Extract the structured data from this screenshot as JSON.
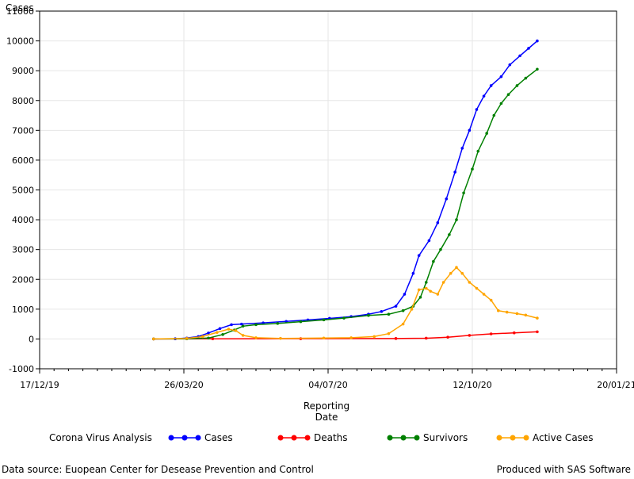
{
  "chart_data": {
    "type": "line",
    "xlabel": "Reporting Date",
    "ylabel": "Cases",
    "xlim": [
      "2019-12-17",
      "2021-01-20"
    ],
    "ylim": [
      -1000,
      11000
    ],
    "x_ticks": [
      "17/12/19",
      "26/03/20",
      "04/07/20",
      "12/10/20",
      "20/01/21"
    ],
    "y_ticks": [
      -1000,
      0,
      1000,
      2000,
      3000,
      4000,
      5000,
      6000,
      7000,
      8000,
      9000,
      10000,
      11000
    ],
    "grid": true,
    "legend_title": "Corona Virus Analysis",
    "legend_position": "bottom",
    "series": [
      {
        "name": "Cases",
        "color": "#0000ff",
        "points": [
          [
            "2020-03-05",
            0
          ],
          [
            "2020-03-20",
            5
          ],
          [
            "2020-03-28",
            30
          ],
          [
            "2020-04-05",
            80
          ],
          [
            "2020-04-12",
            200
          ],
          [
            "2020-04-20",
            350
          ],
          [
            "2020-04-28",
            480
          ],
          [
            "2020-05-05",
            500
          ],
          [
            "2020-05-20",
            540
          ],
          [
            "2020-06-05",
            590
          ],
          [
            "2020-06-20",
            640
          ],
          [
            "2020-07-05",
            690
          ],
          [
            "2020-07-20",
            750
          ],
          [
            "2020-08-01",
            830
          ],
          [
            "2020-08-10",
            920
          ],
          [
            "2020-08-20",
            1100
          ],
          [
            "2020-08-26",
            1500
          ],
          [
            "2020-09-01",
            2200
          ],
          [
            "2020-09-05",
            2800
          ],
          [
            "2020-09-12",
            3300
          ],
          [
            "2020-09-18",
            3900
          ],
          [
            "2020-09-24",
            4700
          ],
          [
            "2020-09-30",
            5600
          ],
          [
            "2020-10-05",
            6400
          ],
          [
            "2020-10-10",
            7000
          ],
          [
            "2020-10-15",
            7700
          ],
          [
            "2020-10-20",
            8150
          ],
          [
            "2020-10-25",
            8500
          ],
          [
            "2020-11-01",
            8800
          ],
          [
            "2020-11-07",
            9200
          ],
          [
            "2020-11-14",
            9500
          ],
          [
            "2020-11-20",
            9750
          ],
          [
            "2020-11-26",
            10000
          ]
        ]
      },
      {
        "name": "Deaths",
        "color": "#ff0000",
        "points": [
          [
            "2020-03-05",
            0
          ],
          [
            "2020-04-15",
            5
          ],
          [
            "2020-06-15",
            10
          ],
          [
            "2020-08-20",
            15
          ],
          [
            "2020-09-10",
            25
          ],
          [
            "2020-09-25",
            60
          ],
          [
            "2020-10-10",
            120
          ],
          [
            "2020-10-25",
            170
          ],
          [
            "2020-11-10",
            205
          ],
          [
            "2020-11-26",
            240
          ]
        ]
      },
      {
        "name": "Survivors",
        "color": "#008000",
        "points": [
          [
            "2020-03-05",
            0
          ],
          [
            "2020-03-28",
            5
          ],
          [
            "2020-04-12",
            30
          ],
          [
            "2020-04-22",
            150
          ],
          [
            "2020-04-30",
            300
          ],
          [
            "2020-05-06",
            430
          ],
          [
            "2020-05-15",
            480
          ],
          [
            "2020-05-30",
            520
          ],
          [
            "2020-06-15",
            580
          ],
          [
            "2020-07-01",
            640
          ],
          [
            "2020-07-15",
            700
          ],
          [
            "2020-08-01",
            790
          ],
          [
            "2020-08-15",
            830
          ],
          [
            "2020-08-25",
            950
          ],
          [
            "2020-09-01",
            1100
          ],
          [
            "2020-09-06",
            1400
          ],
          [
            "2020-09-10",
            1900
          ],
          [
            "2020-09-15",
            2600
          ],
          [
            "2020-09-20",
            3000
          ],
          [
            "2020-09-26",
            3500
          ],
          [
            "2020-10-01",
            4000
          ],
          [
            "2020-10-06",
            4900
          ],
          [
            "2020-10-12",
            5700
          ],
          [
            "2020-10-16",
            6300
          ],
          [
            "2020-10-22",
            6900
          ],
          [
            "2020-10-27",
            7500
          ],
          [
            "2020-11-01",
            7900
          ],
          [
            "2020-11-06",
            8200
          ],
          [
            "2020-11-12",
            8500
          ],
          [
            "2020-11-18",
            8750
          ],
          [
            "2020-11-26",
            9050
          ]
        ]
      },
      {
        "name": "Active Cases",
        "color": "#ffa500",
        "points": [
          [
            "2020-03-05",
            0
          ],
          [
            "2020-03-28",
            20
          ],
          [
            "2020-04-08",
            80
          ],
          [
            "2020-04-18",
            220
          ],
          [
            "2020-04-26",
            330
          ],
          [
            "2020-05-01",
            280
          ],
          [
            "2020-05-06",
            120
          ],
          [
            "2020-05-15",
            40
          ],
          [
            "2020-06-01",
            20
          ],
          [
            "2020-07-01",
            30
          ],
          [
            "2020-07-20",
            40
          ],
          [
            "2020-08-05",
            80
          ],
          [
            "2020-08-15",
            180
          ],
          [
            "2020-08-25",
            500
          ],
          [
            "2020-08-31",
            1000
          ],
          [
            "2020-09-05",
            1650
          ],
          [
            "2020-09-10",
            1700
          ],
          [
            "2020-09-13",
            1600
          ],
          [
            "2020-09-18",
            1500
          ],
          [
            "2020-09-22",
            1900
          ],
          [
            "2020-09-27",
            2200
          ],
          [
            "2020-10-01",
            2400
          ],
          [
            "2020-10-05",
            2200
          ],
          [
            "2020-10-10",
            1900
          ],
          [
            "2020-10-15",
            1700
          ],
          [
            "2020-10-20",
            1500
          ],
          [
            "2020-10-25",
            1300
          ],
          [
            "2020-10-30",
            950
          ],
          [
            "2020-11-05",
            900
          ],
          [
            "2020-11-12",
            850
          ],
          [
            "2020-11-18",
            800
          ],
          [
            "2020-11-26",
            700
          ]
        ]
      }
    ]
  },
  "footer": {
    "left": "Data source: Euopean Center for Desease Prevention and Control",
    "right": "Produced with SAS Software"
  },
  "axis_title_y": "Cases",
  "axis_title_x_line1": "Reporting",
  "axis_title_x_line2": "Date"
}
